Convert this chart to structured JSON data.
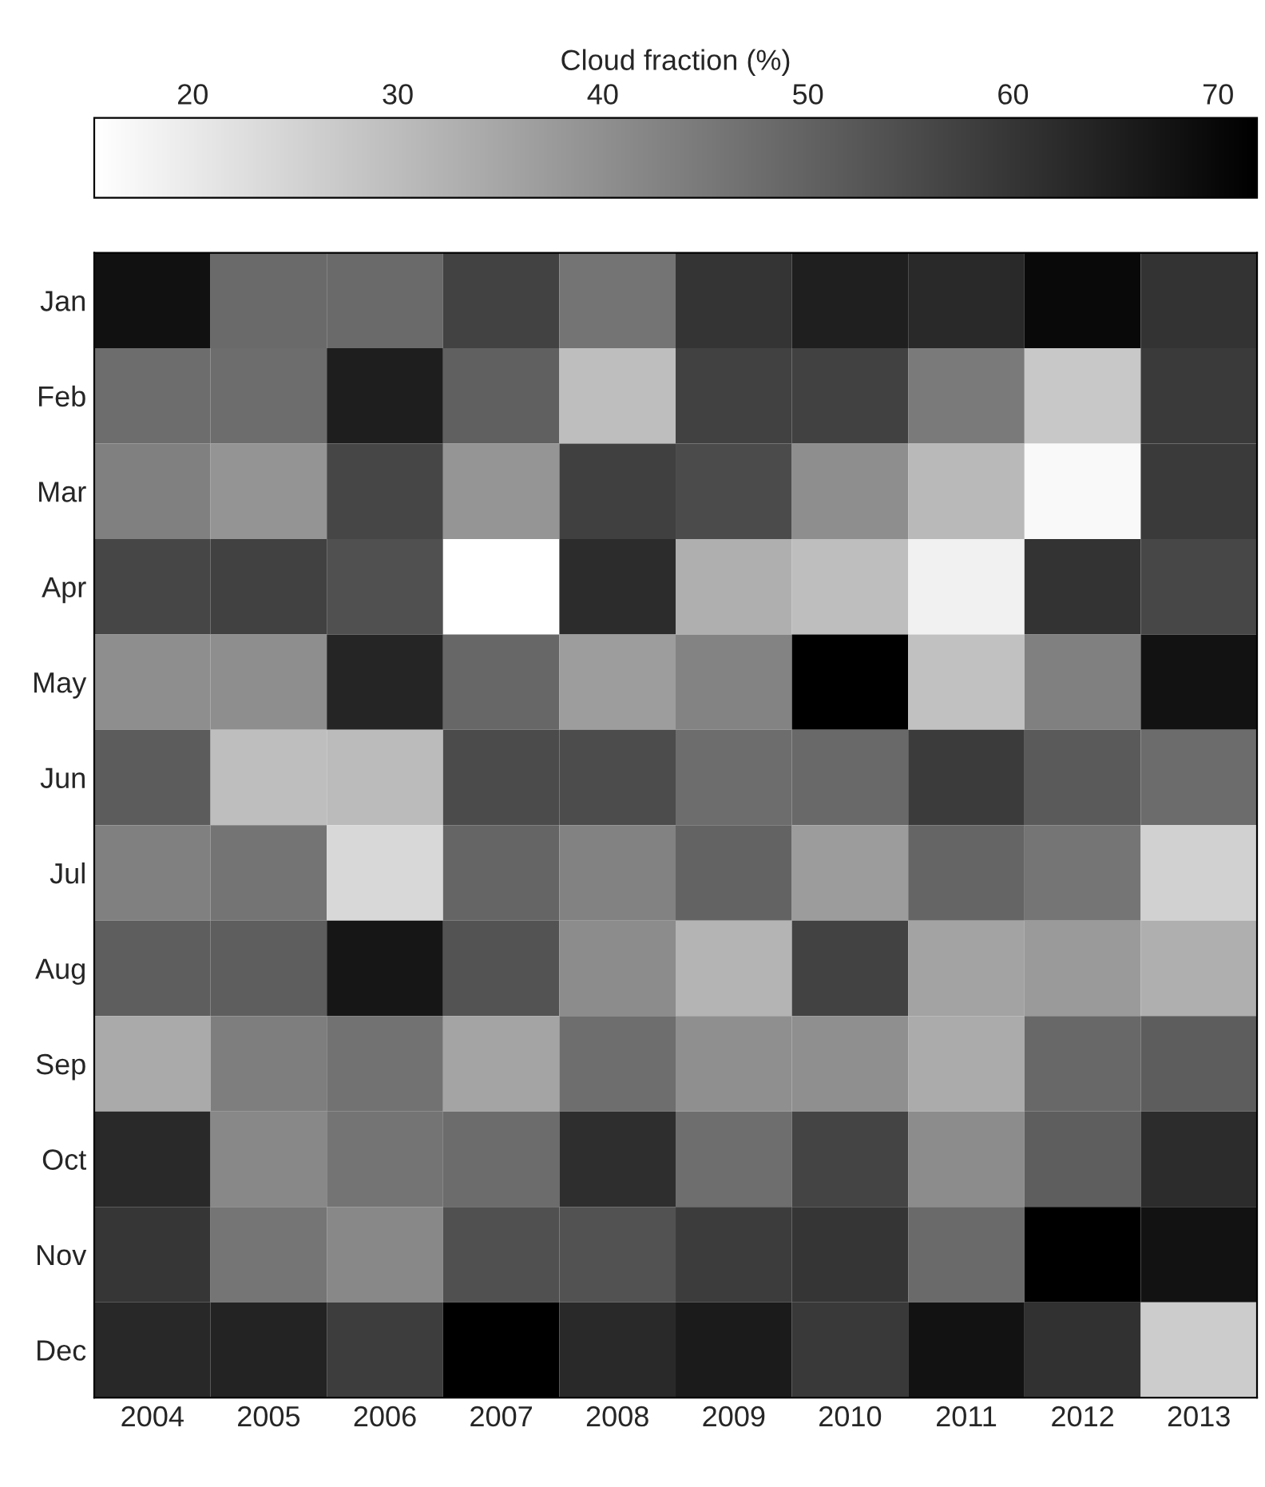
{
  "chart_data": {
    "type": "heatmap",
    "clabel": "Cloud fraction (%)",
    "categories": [
      "2004",
      "2005",
      "2006",
      "2007",
      "2008",
      "2009",
      "2010",
      "2011",
      "2012",
      "2013"
    ],
    "y_categories": [
      "Jan",
      "Feb",
      "Mar",
      "Apr",
      "May",
      "Jun",
      "Jul",
      "Aug",
      "Sep",
      "Oct",
      "Nov",
      "Dec"
    ],
    "cells": [
      [
        68.1,
        48.3,
        48.3,
        57.2,
        46.1,
        60.3,
        65.0,
        62.6,
        69.7,
        60.6
      ],
      [
        47.7,
        47.7,
        65.2,
        50.5,
        29.6,
        57.4,
        57.4,
        44.8,
        27.4,
        59.0
      ],
      [
        43.4,
        39.0,
        56.3,
        38.8,
        57.7,
        55.2,
        40.3,
        30.8,
        16.7,
        59.0
      ],
      [
        56.3,
        57.4,
        54.1,
        15.2,
        62.1,
        33.0,
        29.6,
        18.5,
        60.6,
        56.1
      ],
      [
        40.3,
        40.3,
        63.5,
        49.0,
        37.0,
        42.8,
        71.9,
        29.0,
        43.4,
        67.9
      ],
      [
        51.4,
        29.6,
        30.3,
        55.2,
        55.0,
        47.7,
        48.5,
        58.8,
        51.9,
        47.9
      ],
      [
        43.4,
        46.1,
        23.9,
        49.4,
        43.0,
        49.9,
        37.2,
        49.4,
        45.9,
        25.6
      ],
      [
        51.0,
        51.0,
        67.0,
        53.4,
        40.8,
        31.9,
        57.2,
        35.7,
        37.6,
        33.0
      ],
      [
        34.1,
        43.9,
        46.5,
        35.4,
        47.4,
        40.1,
        40.1,
        33.9,
        48.8,
        51.2
      ],
      [
        62.6,
        41.7,
        46.1,
        47.9,
        61.7,
        47.4,
        56.8,
        40.8,
        51.0,
        62.1
      ],
      [
        59.9,
        45.9,
        41.7,
        54.1,
        53.7,
        58.6,
        60.1,
        48.3,
        71.9,
        67.9
      ],
      [
        63.0,
        64.1,
        58.3,
        71.9,
        62.6,
        65.7,
        59.2,
        67.9,
        61.0,
        26.5
      ]
    ],
    "clim": [
      15.2,
      71.9
    ],
    "cticks": [
      20,
      30,
      40,
      50,
      60,
      70
    ]
  }
}
